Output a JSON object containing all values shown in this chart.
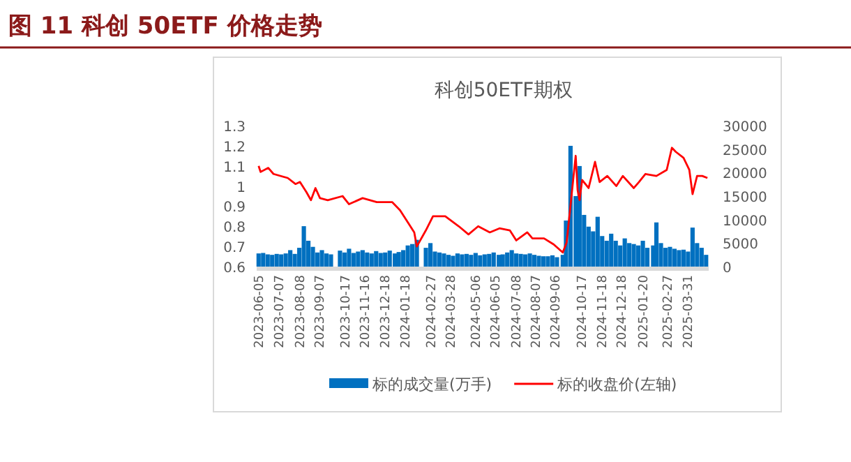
{
  "chart_data": {
    "type": "bar",
    "title": "图 11 科创 50ETF 价格走势",
    "subtitle": "科创50ETF期权",
    "xlim": [
      "2023-06-02",
      "2025-05-02"
    ],
    "xticks": [
      "2023-06-05",
      "2023-07-07",
      "2023-08-08",
      "2023-09-07",
      "2023-10-17",
      "2023-11-16",
      "2023-12-18",
      "2024-01-18",
      "2024-02-27",
      "2024-03-28",
      "2024-05-06",
      "2024-06-05",
      "2024-07-08",
      "2024-08-07",
      "2024-09-06",
      "2024-10-17",
      "2024-11-18",
      "2024-12-18",
      "2025-01-20",
      "2025-02-27",
      "2025-03-31"
    ],
    "ylim": [
      0.6,
      1.3
    ],
    "yticks": [
      0.6,
      0.7,
      0.8,
      0.9,
      1,
      1.1,
      1.2,
      1.3
    ],
    "y2lim": [
      0,
      30000
    ],
    "y2ticks": [
      0,
      5000,
      10000,
      15000,
      20000,
      25000,
      30000
    ],
    "legend": "bottom",
    "grid": false,
    "series": [
      {
        "name": "标的成交量(万手)",
        "axis": "y2",
        "color": "#0070c0",
        "x": [
          "2023-06-05",
          "2023-06-12",
          "2023-06-19",
          "2023-06-26",
          "2023-07-03",
          "2023-07-10",
          "2023-07-17",
          "2023-07-24",
          "2023-07-31",
          "2023-08-07",
          "2023-08-14",
          "2023-08-21",
          "2023-08-28",
          "2023-09-04",
          "2023-09-11",
          "2023-09-18",
          "2023-09-25",
          "2023-10-09",
          "2023-10-16",
          "2023-10-23",
          "2023-10-30",
          "2023-11-06",
          "2023-11-13",
          "2023-11-20",
          "2023-11-27",
          "2023-12-04",
          "2023-12-11",
          "2023-12-18",
          "2023-12-25",
          "2024-01-02",
          "2024-01-08",
          "2024-01-15",
          "2024-01-22",
          "2024-01-29",
          "2024-02-05",
          "2024-02-19",
          "2024-02-26",
          "2024-03-04",
          "2024-03-11",
          "2024-03-18",
          "2024-03-25",
          "2024-04-01",
          "2024-04-08",
          "2024-04-15",
          "2024-04-22",
          "2024-04-29",
          "2024-05-06",
          "2024-05-13",
          "2024-05-20",
          "2024-05-27",
          "2024-06-03",
          "2024-06-11",
          "2024-06-17",
          "2024-06-24",
          "2024-07-01",
          "2024-07-08",
          "2024-07-15",
          "2024-07-22",
          "2024-07-29",
          "2024-08-05",
          "2024-08-12",
          "2024-08-19",
          "2024-08-26",
          "2024-09-02",
          "2024-09-09",
          "2024-09-18",
          "2024-09-23",
          "2024-09-30",
          "2024-10-08",
          "2024-10-14",
          "2024-10-21",
          "2024-10-28",
          "2024-11-04",
          "2024-11-11",
          "2024-11-18",
          "2024-11-25",
          "2024-12-02",
          "2024-12-09",
          "2024-12-16",
          "2024-12-23",
          "2024-12-30",
          "2025-01-06",
          "2025-01-13",
          "2025-01-20",
          "2025-01-27",
          "2025-02-05",
          "2025-02-10",
          "2025-02-17",
          "2025-02-24",
          "2025-03-03",
          "2025-03-10",
          "2025-03-17",
          "2025-03-24",
          "2025-03-31",
          "2025-04-07",
          "2025-04-14",
          "2025-04-21",
          "2025-04-28"
        ],
        "values": [
          2800,
          2900,
          2600,
          2500,
          2700,
          2600,
          2800,
          3500,
          2700,
          4000,
          8600,
          5500,
          4200,
          3000,
          3500,
          2800,
          2600,
          3400,
          3000,
          3800,
          2900,
          3200,
          3500,
          3000,
          2800,
          3300,
          2900,
          3000,
          3400,
          2800,
          3100,
          3500,
          4500,
          4800,
          5700,
          4000,
          5000,
          3200,
          3000,
          2800,
          2500,
          2300,
          2800,
          2600,
          2700,
          2500,
          2900,
          2400,
          2600,
          2700,
          3000,
          2500,
          2600,
          3000,
          3500,
          2800,
          2700,
          2600,
          2800,
          2500,
          2300,
          2200,
          2200,
          2400,
          2000,
          2500,
          9800,
          25700,
          15000,
          21400,
          11000,
          8500,
          7500,
          10600,
          6500,
          5500,
          7000,
          5500,
          4500,
          6000,
          5000,
          4800,
          4500,
          5500,
          4000,
          4500,
          9400,
          5000,
          4000,
          4200,
          3800,
          3500,
          3600,
          3200,
          8300,
          5000,
          4000,
          2500
        ]
      },
      {
        "name": "标的收盘价(左轴)",
        "type": "line",
        "axis": "y",
        "color": "#ff0000",
        "x": [
          "2023-06-05",
          "2023-06-08",
          "2023-06-20",
          "2023-06-28",
          "2023-07-20",
          "2023-08-01",
          "2023-08-08",
          "2023-08-18",
          "2023-08-25",
          "2023-09-01",
          "2023-09-08",
          "2023-09-20",
          "2023-10-13",
          "2023-10-23",
          "2023-11-13",
          "2023-12-05",
          "2023-12-29",
          "2024-01-10",
          "2024-01-22",
          "2024-02-01",
          "2024-02-05",
          "2024-02-19",
          "2024-03-01",
          "2024-03-20",
          "2024-04-10",
          "2024-04-25",
          "2024-05-10",
          "2024-05-28",
          "2024-06-12",
          "2024-06-28",
          "2024-07-08",
          "2024-07-25",
          "2024-08-02",
          "2024-08-20",
          "2024-09-04",
          "2024-09-18",
          "2024-09-24",
          "2024-10-08",
          "2024-10-11",
          "2024-10-14",
          "2024-10-18",
          "2024-10-28",
          "2024-11-07",
          "2024-11-14",
          "2024-11-26",
          "2024-12-10",
          "2024-12-20",
          "2025-01-06",
          "2025-01-14",
          "2025-01-24",
          "2025-02-10",
          "2025-02-26",
          "2025-03-06",
          "2025-03-12",
          "2025-03-24",
          "2025-04-02",
          "2025-04-07",
          "2025-04-14",
          "2025-04-22",
          "2025-04-30"
        ],
        "values": [
          1.1,
          1.07,
          1.09,
          1.06,
          1.04,
          1.01,
          1.02,
          0.97,
          0.93,
          0.99,
          0.94,
          0.93,
          0.95,
          0.91,
          0.94,
          0.92,
          0.92,
          0.88,
          0.82,
          0.77,
          0.7,
          0.78,
          0.85,
          0.85,
          0.8,
          0.76,
          0.8,
          0.77,
          0.79,
          0.78,
          0.73,
          0.77,
          0.74,
          0.74,
          0.71,
          0.67,
          0.72,
          1.15,
          0.98,
          0.93,
          1.03,
          0.99,
          1.12,
          1.02,
          1.05,
          1.0,
          1.05,
          0.99,
          1.02,
          1.06,
          1.05,
          1.08,
          1.19,
          1.17,
          1.14,
          1.08,
          0.96,
          1.05,
          1.05,
          1.04
        ]
      }
    ]
  }
}
